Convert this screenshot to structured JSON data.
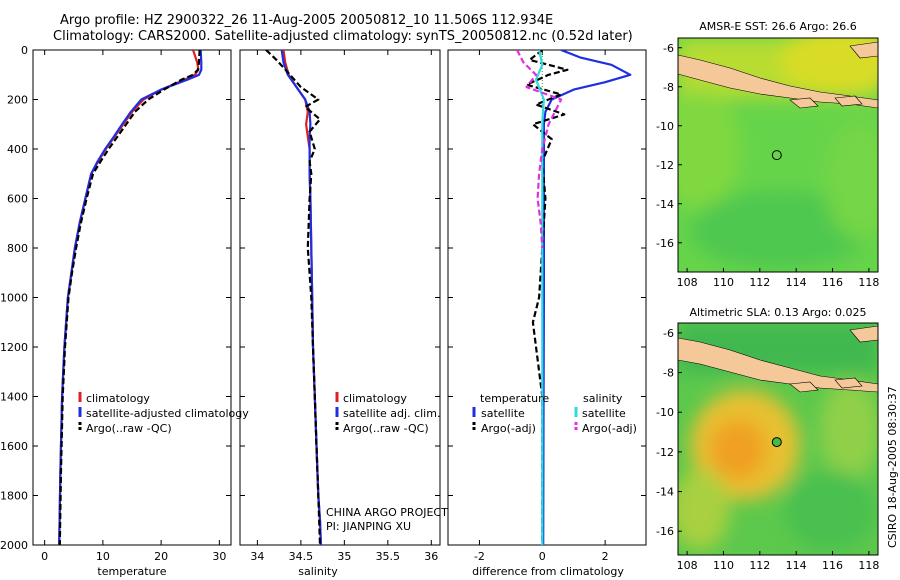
{
  "figure": {
    "title_line1": "Argo profile: HZ 2900322_26 11-Aug-2005 20050812_10 11.506S 112.934E",
    "title_line2": "Climatology: CARS2000. Satellite-adjusted climatology: synTS_20050812.nc (0.52d later)",
    "credit": "CSIRO 18-Aug-2005 08:30:37",
    "colors": {
      "climatology": "#e02020",
      "satellite": "#1f2fe0",
      "argo": "#000000",
      "satellite_salt": "#30d8e0",
      "argo_salt": "#e030e0"
    }
  },
  "chart_data": [
    {
      "type": "line",
      "xlabel": "temperature",
      "xlim": [
        -2,
        32
      ],
      "ylim": [
        2000,
        0
      ],
      "xticks": [
        "0",
        "10",
        "20",
        "30"
      ],
      "yticks": [
        "0",
        "200",
        "400",
        "600",
        "800",
        "1000",
        "1200",
        "1400",
        "1600",
        "1800",
        "2000"
      ],
      "legend": [
        "climatology",
        "satellite-adjusted climatology",
        "Argo(..raw -QC)"
      ],
      "series": [
        {
          "name": "climatology",
          "color": "#e02020",
          "dash": "",
          "x": [
            25.5,
            26.2,
            26.4,
            25.8,
            24.0,
            20.0,
            17.0,
            15.0,
            13.5,
            12.0,
            10.5,
            9.2,
            8.0,
            7.0,
            6.0,
            5.2,
            4.6,
            4.0,
            3.4,
            3.0,
            2.7,
            2.5
          ],
          "y": [
            0,
            50,
            80,
            100,
            120,
            160,
            200,
            250,
            300,
            350,
            400,
            450,
            500,
            600,
            700,
            800,
            900,
            1000,
            1200,
            1400,
            1700,
            2000
          ]
        },
        {
          "name": "satellite-adjusted climatology",
          "color": "#1f2fe0",
          "dash": "",
          "x": [
            26.8,
            26.9,
            26.9,
            26.5,
            24.5,
            20.0,
            16.6,
            14.8,
            13.3,
            11.9,
            10.4,
            9.1,
            8.0,
            7.0,
            6.0,
            5.2,
            4.6,
            4.0,
            3.4,
            3.0,
            2.7,
            2.5
          ],
          "y": [
            0,
            50,
            80,
            100,
            120,
            160,
            200,
            250,
            300,
            350,
            400,
            450,
            500,
            600,
            700,
            800,
            900,
            1000,
            1200,
            1400,
            1700,
            2000
          ]
        },
        {
          "name": "Argo(..raw -QC)",
          "color": "#000000",
          "dash": "6,3",
          "x": [
            26.6,
            26.5,
            26.3,
            25.5,
            23.5,
            20.5,
            17.8,
            15.5,
            14.0,
            12.5,
            11.0,
            9.6,
            8.3,
            7.2,
            6.2,
            5.4,
            4.7,
            4.1,
            3.5,
            3.1,
            2.8,
            2.6
          ],
          "y": [
            0,
            50,
            80,
            100,
            120,
            160,
            200,
            250,
            300,
            350,
            400,
            450,
            500,
            600,
            700,
            800,
            900,
            1000,
            1200,
            1400,
            1700,
            2000
          ]
        }
      ]
    },
    {
      "type": "line",
      "xlabel": "salinity",
      "xlim": [
        33.8,
        36.1
      ],
      "ylim": [
        2000,
        0
      ],
      "xticks": [
        "34",
        "34.5",
        "35",
        "35.5",
        "36"
      ],
      "legend": [
        "climatology",
        "satellite adj. clim.",
        "Argo(..raw -QC)"
      ],
      "annotations": [
        "CHINA ARGO PROJECT",
        "PI: JIANPING XU"
      ],
      "series": [
        {
          "name": "climatology",
          "color": "#e02020",
          "dash": "",
          "x": [
            34.3,
            34.32,
            34.36,
            34.45,
            34.55,
            34.58,
            34.56,
            34.58,
            34.6,
            34.6,
            34.61,
            34.62,
            34.63,
            34.64,
            34.66,
            34.68,
            34.7,
            34.72,
            34.73
          ],
          "y": [
            0,
            50,
            100,
            150,
            200,
            250,
            300,
            350,
            400,
            500,
            600,
            800,
            1000,
            1200,
            1400,
            1600,
            1800,
            1900,
            2000
          ]
        },
        {
          "name": "satellite adj. clim.",
          "color": "#1f2fe0",
          "dash": "",
          "x": [
            34.28,
            34.3,
            34.35,
            34.45,
            34.55,
            34.6,
            34.61,
            34.6,
            34.6,
            34.6,
            34.61,
            34.62,
            34.63,
            34.64,
            34.66,
            34.68,
            34.7,
            34.72,
            34.73
          ],
          "y": [
            0,
            50,
            100,
            150,
            200,
            250,
            300,
            350,
            400,
            500,
            600,
            800,
            1000,
            1200,
            1400,
            1600,
            1800,
            1900,
            2000
          ]
        },
        {
          "name": "Argo(..raw -QC)",
          "color": "#000000",
          "dash": "6,3",
          "x": [
            34.1,
            34.22,
            34.35,
            34.5,
            34.7,
            34.55,
            34.72,
            34.6,
            34.66,
            34.6,
            34.62,
            34.6,
            34.58,
            34.62,
            34.64,
            34.66,
            34.68,
            34.7,
            34.72
          ],
          "y": [
            0,
            40,
            90,
            150,
            200,
            230,
            280,
            330,
            400,
            450,
            500,
            600,
            800,
            1000,
            1200,
            1400,
            1600,
            1800,
            2000
          ]
        }
      ]
    },
    {
      "type": "line",
      "xlabel": "difference from climatology",
      "xlim": [
        -3,
        3.3
      ],
      "ylim": [
        2000,
        0
      ],
      "xticks": [
        "-2",
        "0",
        "2"
      ],
      "legend": [
        "temperature",
        "satellite",
        "Argo(-adj)",
        "salinity",
        "satellite",
        "Argo(-adj)"
      ],
      "series": [
        {
          "name": "satellite",
          "color": "#1f2fe0",
          "dash": "",
          "x": [
            0.6,
            1.2,
            2.2,
            2.8,
            2.0,
            1.0,
            0.3,
            0.1,
            0.05,
            0.05,
            0.05,
            0.05,
            0.04,
            0.03
          ],
          "y": [
            0,
            30,
            60,
            100,
            130,
            160,
            200,
            250,
            300,
            400,
            600,
            1000,
            1500,
            2000
          ]
        },
        {
          "name": "Argo(-adj)",
          "color": "#000000",
          "dash": "6,3",
          "x": [
            0.0,
            -0.4,
            0.8,
            0.2,
            -0.5,
            0.6,
            -0.2,
            0.7,
            -0.3,
            0.3,
            0.0,
            0.1,
            0.0,
            -0.1,
            -0.3,
            0.0,
            0.0
          ],
          "y": [
            0,
            40,
            80,
            100,
            140,
            180,
            220,
            260,
            300,
            360,
            450,
            600,
            800,
            1000,
            1100,
            1400,
            2000
          ]
        },
        {
          "name": "satellite",
          "color": "#30d8e0",
          "dash": "",
          "x": [
            -0.1,
            0.0,
            -0.2,
            0.05,
            0.0,
            0.0,
            0.0,
            0.0,
            0.0,
            0.0
          ],
          "y": [
            0,
            60,
            120,
            200,
            300,
            500,
            800,
            1200,
            1600,
            2000
          ]
        },
        {
          "name": "Argo(-adj)",
          "color": "#e030e0",
          "dash": "6,3",
          "x": [
            -0.8,
            -0.6,
            -0.2,
            -0.5,
            0.6,
            0.4,
            0.2,
            0.0,
            -0.1,
            -0.15,
            -0.05,
            0.0
          ],
          "y": [
            0,
            50,
            100,
            150,
            200,
            250,
            300,
            400,
            500,
            600,
            700,
            800
          ]
        }
      ]
    },
    {
      "type": "heatmap",
      "title": "AMSR-E SST: 26.6 Argo: 26.6",
      "xlim": [
        107.5,
        118.5
      ],
      "ylim": [
        -17.5,
        -5.5
      ],
      "xticks": [
        "108",
        "110",
        "112",
        "114",
        "116",
        "118"
      ],
      "yticks": [
        "-6",
        "-8",
        "-10",
        "-12",
        "-14",
        "-16"
      ],
      "marker": {
        "lon": 112.934,
        "lat": -11.506,
        "filled": false
      }
    },
    {
      "type": "heatmap",
      "title": "Altimetric SLA: 0.13 Argo: 0.025",
      "xlim": [
        107.5,
        118.5
      ],
      "ylim": [
        -17.2,
        -5.5
      ],
      "xticks": [
        "108",
        "110",
        "112",
        "114",
        "116",
        "118"
      ],
      "yticks": [
        "-6",
        "-8",
        "-10",
        "-12",
        "-14",
        "-16"
      ],
      "marker": {
        "lon": 112.934,
        "lat": -11.506,
        "filled": true
      }
    }
  ]
}
